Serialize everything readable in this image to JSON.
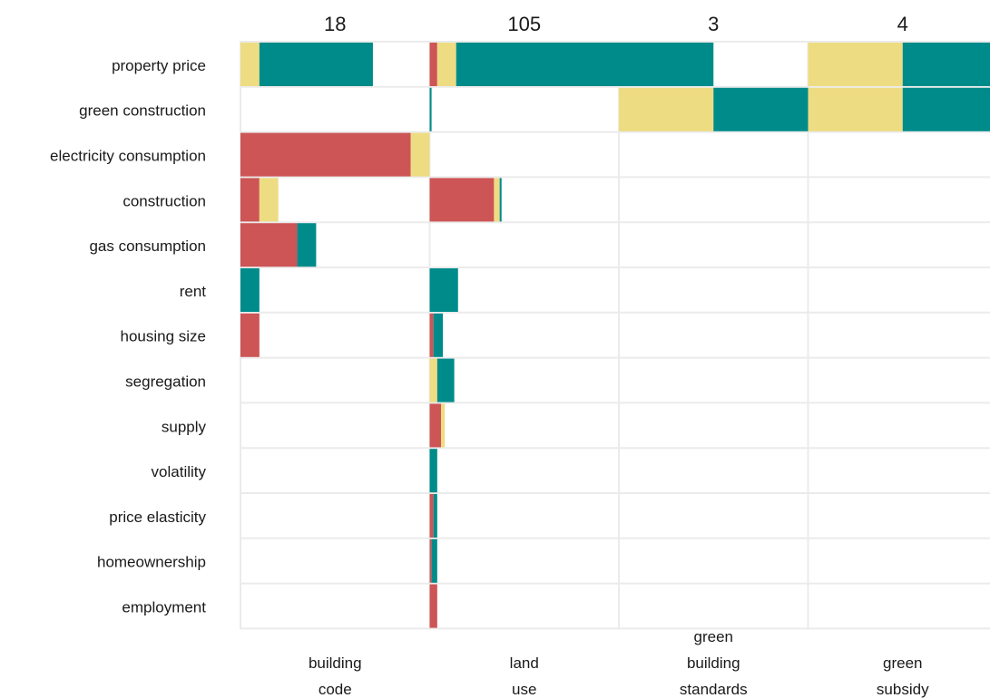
{
  "chart_data": {
    "type": "bar",
    "layout": "faceted-stacked-horizontal",
    "panels": [
      {
        "name": "building code",
        "label_lines": [
          "building",
          "code"
        ],
        "count": "18"
      },
      {
        "name": "land use",
        "label_lines": [
          "land",
          "use"
        ],
        "count": "105"
      },
      {
        "name": "green building standards",
        "label_lines": [
          "green",
          "building",
          "standards"
        ],
        "count": "3"
      },
      {
        "name": "green subsidy",
        "label_lines": [
          "green",
          "subsidy"
        ],
        "count": "4"
      }
    ],
    "categories": [
      "property price",
      "green construction",
      "electricity consumption",
      "construction",
      "gas consumption",
      "rent",
      "housing size",
      "segregation",
      "supply",
      "volatility",
      "price elasticity",
      "homeownership",
      "employment"
    ],
    "segment_order": [
      "red",
      "yellow",
      "teal"
    ],
    "colors": {
      "red": "#cd5555",
      "yellow": "#eedc82",
      "teal": "#008b8b",
      "grid": "#ebebeb"
    },
    "panel_max": [
      1.0,
      1.0,
      1.0,
      1.0
    ],
    "values": [
      [
        [
          0,
          0.1,
          0.6
        ],
        [
          0.04,
          0.1,
          0.86
        ],
        [
          0,
          0,
          0.5
        ],
        [
          0,
          0.5,
          0.5
        ]
      ],
      [
        [
          0,
          0,
          0
        ],
        [
          0,
          0,
          0.01
        ],
        [
          0,
          0.5,
          0.5
        ],
        [
          0,
          0.5,
          0.5
        ]
      ],
      [
        [
          0.9,
          0.1,
          0
        ],
        [
          0,
          0,
          0
        ],
        [
          0,
          0,
          0
        ],
        [
          0,
          0,
          0
        ]
      ],
      [
        [
          0.1,
          0.1,
          0
        ],
        [
          0.34,
          0.03,
          0.01
        ],
        [
          0,
          0,
          0
        ],
        [
          0,
          0,
          0
        ]
      ],
      [
        [
          0.3,
          0,
          0.1
        ],
        [
          0,
          0,
          0
        ],
        [
          0,
          0,
          0
        ],
        [
          0,
          0,
          0
        ]
      ],
      [
        [
          0,
          0,
          0.1
        ],
        [
          0,
          0,
          0.15
        ],
        [
          0,
          0,
          0
        ],
        [
          0,
          0,
          0
        ]
      ],
      [
        [
          0.1,
          0,
          0
        ],
        [
          0.02,
          0,
          0.05
        ],
        [
          0,
          0,
          0
        ],
        [
          0,
          0,
          0
        ]
      ],
      [
        [
          0,
          0,
          0
        ],
        [
          0,
          0.04,
          0.09
        ],
        [
          0,
          0,
          0
        ],
        [
          0,
          0,
          0
        ]
      ],
      [
        [
          0,
          0,
          0
        ],
        [
          0.06,
          0.02,
          0
        ],
        [
          0,
          0,
          0
        ],
        [
          0,
          0,
          0
        ]
      ],
      [
        [
          0,
          0,
          0
        ],
        [
          0,
          0,
          0.04
        ],
        [
          0,
          0,
          0
        ],
        [
          0,
          0,
          0
        ]
      ],
      [
        [
          0,
          0,
          0
        ],
        [
          0.02,
          0,
          0.02
        ],
        [
          0,
          0,
          0
        ],
        [
          0,
          0,
          0
        ]
      ],
      [
        [
          0,
          0,
          0
        ],
        [
          0.01,
          0,
          0.03
        ],
        [
          0,
          0,
          0
        ],
        [
          0,
          0,
          0
        ]
      ],
      [
        [
          0,
          0,
          0
        ],
        [
          0.04,
          0,
          0
        ],
        [
          0,
          0,
          0
        ],
        [
          0,
          0,
          0
        ]
      ]
    ]
  }
}
